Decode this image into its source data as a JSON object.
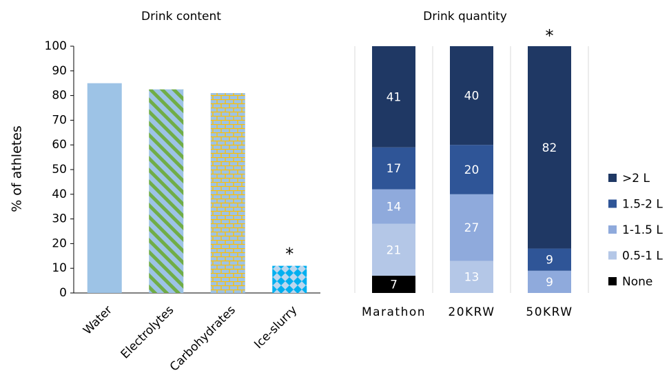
{
  "chart_data": [
    {
      "type": "bar",
      "title": "Drink content",
      "ylabel": "% of athletes",
      "categories": [
        "Water",
        "Electrolytes",
        "Carbohydrates",
        "Ice-slurry"
      ],
      "values": [
        85,
        82.5,
        81,
        11
      ],
      "colors": [
        "#9dc3e6",
        "#9dc3e6",
        "#9dc3e6",
        "#00b0f0"
      ],
      "patterns": [
        "solid",
        "stripes",
        "bricks",
        "diamonds"
      ],
      "pattern_colors": [
        "#9dc3e6",
        "#70ad47",
        "#ffc000",
        "#bdd7ee"
      ],
      "ylim": [
        0,
        100
      ],
      "yticks": [
        0,
        10,
        20,
        30,
        40,
        50,
        60,
        70,
        80,
        90,
        100
      ],
      "annotations": [
        {
          "text": "*",
          "category": "Ice-slurry"
        }
      ]
    },
    {
      "type": "stacked_bar",
      "title": "Drink quantity",
      "categories": [
        "Marathon",
        "20KRW",
        "50KRW"
      ],
      "series": [
        {
          "name": "None",
          "color": "#000000",
          "values": [
            7,
            0,
            0
          ]
        },
        {
          "name": "0.5-1 L",
          "color": "#b4c7e7",
          "values": [
            21,
            13,
            0
          ]
        },
        {
          "name": "1-1.5 L",
          "color": "#8faadc",
          "values": [
            14,
            27,
            9
          ]
        },
        {
          "name": "1.5-2 L",
          "color": "#2f5597",
          "values": [
            17,
            20,
            9
          ]
        },
        {
          "name": ">2 L",
          "color": "#1f3864",
          "values": [
            41,
            40,
            82
          ]
        }
      ],
      "ylim": [
        0,
        100
      ],
      "legend": "right",
      "annotations": [
        {
          "text": "*",
          "category": "50KRW"
        }
      ]
    }
  ]
}
